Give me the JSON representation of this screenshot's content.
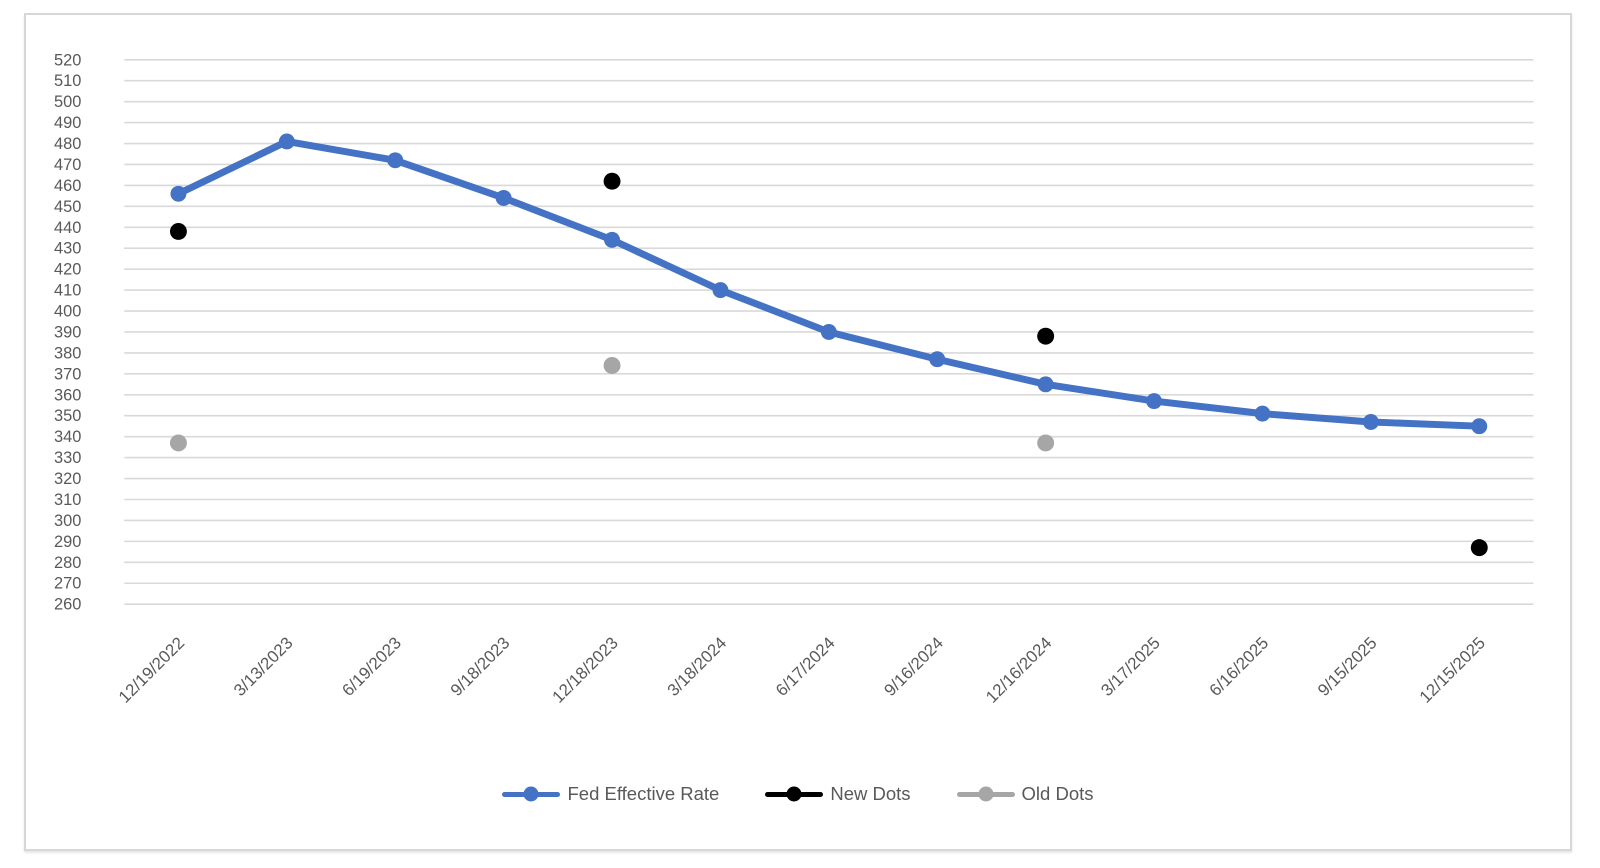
{
  "chart_data": {
    "type": "line",
    "title": "",
    "xlabel": "",
    "ylabel": "",
    "categories": [
      "12/19/2022",
      "3/13/2023",
      "6/19/2023",
      "9/18/2023",
      "12/18/2023",
      "3/18/2024",
      "6/17/2024",
      "9/16/2024",
      "12/16/2024",
      "3/17/2025",
      "6/16/2025",
      "9/15/2025",
      "12/15/2025"
    ],
    "series": [
      {
        "name": "Fed Effective Rate",
        "style": "line-with-markers",
        "color": "#4472C4",
        "values": [
          456,
          481,
          472,
          454,
          434,
          410,
          390,
          377,
          365,
          357,
          351,
          347,
          345
        ]
      },
      {
        "name": "New Dots",
        "style": "markers-only",
        "color": "#000000",
        "values": [
          438,
          null,
          null,
          null,
          462,
          null,
          null,
          null,
          388,
          null,
          null,
          null,
          287
        ]
      },
      {
        "name": "Old Dots",
        "style": "markers-only",
        "color": "#A6A6A6",
        "values": [
          337,
          null,
          null,
          null,
          374,
          null,
          null,
          null,
          337,
          null,
          null,
          null,
          null
        ]
      }
    ],
    "ylim": [
      260,
      520
    ],
    "ytick_step": 10,
    "grid": true,
    "gridline_color": "#D9D9D9",
    "axis_text_color": "#595959",
    "legend_position": "bottom"
  }
}
